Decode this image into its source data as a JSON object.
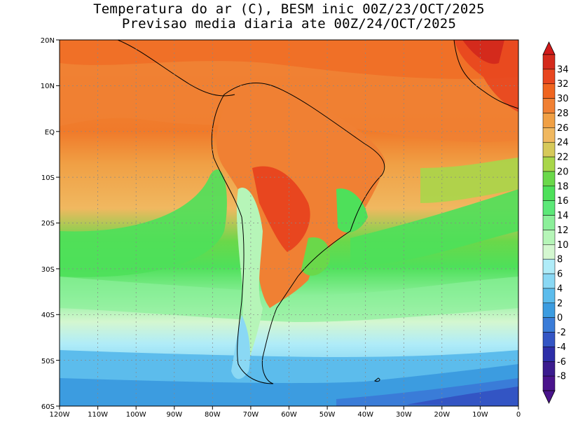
{
  "title_line1": "Temperatura do ar (C), BESM inic 00Z/23/OCT/2025",
  "title_line2": "Previsao media diaria ate 00Z/24/OCT/2025",
  "lat_ticks": [
    "20N",
    "10N",
    "EQ",
    "10S",
    "20S",
    "30S",
    "40S",
    "50S",
    "60S"
  ],
  "lon_ticks": [
    "120W",
    "110W",
    "100W",
    "90W",
    "80W",
    "70W",
    "60W",
    "50W",
    "40W",
    "30W",
    "20W",
    "10W",
    "0"
  ],
  "colorbar": {
    "labels": [
      "34",
      "32",
      "30",
      "28",
      "26",
      "24",
      "22",
      "20",
      "18",
      "16",
      "14",
      "12",
      "10",
      "8",
      "6",
      "4",
      "2",
      "0",
      "-2",
      "-4",
      "-6",
      "-8"
    ],
    "colors": [
      "#d42a1c",
      "#e8461f",
      "#f0651f",
      "#f08033",
      "#f0a045",
      "#f0b860",
      "#d6c95a",
      "#a8d64a",
      "#6ad84a",
      "#4ee05a",
      "#5ce878",
      "#8cef9a",
      "#b6f5b8",
      "#d4f7d0",
      "#b0ecf8",
      "#8ad8f4",
      "#5cbcec",
      "#3c9ce0",
      "#3a7cd8",
      "#3355c4",
      "#2d2ea8",
      "#3b1b8e",
      "#4a148c"
    ],
    "top_color": "#d11a1a",
    "bottom_color": "#4a148c"
  }
}
